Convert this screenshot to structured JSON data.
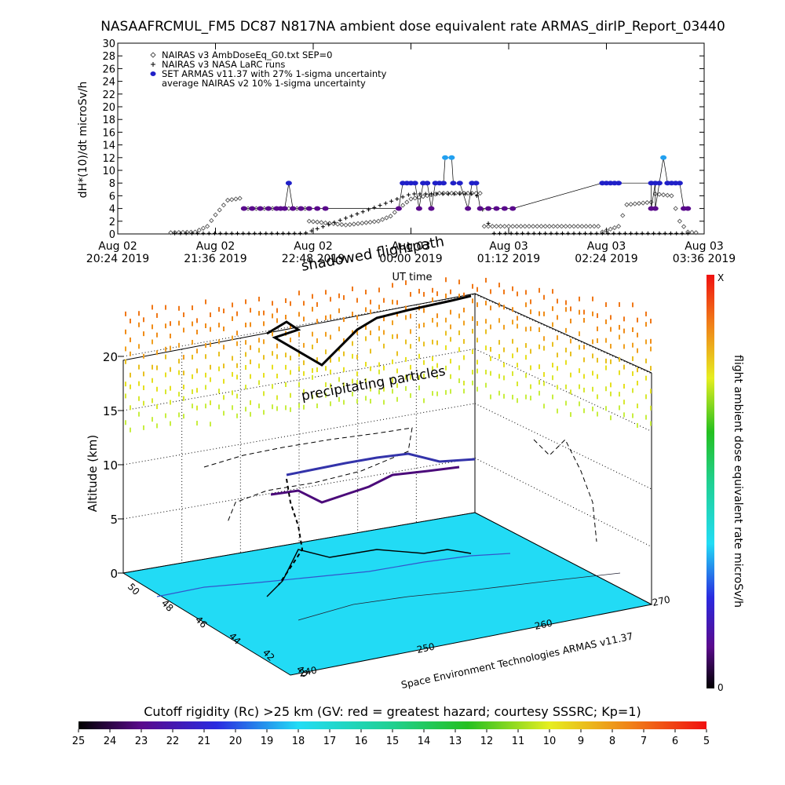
{
  "title": "NASAAFRCMUL_FM5 DC87 N817NA ambient dose equivalent rate ARMAS_dirIP_Report_03440",
  "chart_data": [
    {
      "type": "scatter",
      "ylabel": "dH*(10)/dt microSv/h",
      "xlabel": "UT time",
      "ylim": [
        0,
        30
      ],
      "yticks": [
        0,
        2,
        4,
        6,
        8,
        10,
        12,
        14,
        16,
        18,
        20,
        22,
        24,
        26,
        28,
        30
      ],
      "xlim": [
        0,
        7.2
      ],
      "xticks": [
        {
          "pos": 0.0,
          "line1": "Aug 02",
          "line2": "20:24 2019"
        },
        {
          "pos": 1.2,
          "line1": "Aug 02",
          "line2": "21:36 2019"
        },
        {
          "pos": 2.4,
          "line1": "Aug 02",
          "line2": "22:48 2019"
        },
        {
          "pos": 3.6,
          "line1": "Aug 03",
          "line2": "00:00 2019"
        },
        {
          "pos": 4.8,
          "line1": "Aug 03",
          "line2": "01:12 2019"
        },
        {
          "pos": 6.0,
          "line1": "Aug 03",
          "line2": "02:24 2019"
        },
        {
          "pos": 7.2,
          "line1": "Aug 03",
          "line2": "03:36 2019"
        }
      ],
      "legend": [
        {
          "symbol": "diamond",
          "label": "NAIRAS v3 AmbDoseEq_G0.txt SEP=0"
        },
        {
          "symbol": "plus",
          "label": "NAIRAS v3 NASA LaRC runs"
        },
        {
          "symbol": "dot",
          "label": "SET ARMAS v11.37 with 27% 1-sigma uncertainty"
        },
        {
          "symbol": "none",
          "label": "average NAIRAS v2 10% 1-sigma uncertainty"
        }
      ],
      "legend_placement": "top-left",
      "series": [
        {
          "name": "NAIRAS v3 AmbDoseEq_G0.txt SEP=0",
          "color": "#555555",
          "x_start": 0.65,
          "x_end": 7.1,
          "step": 0.05,
          "profile": [
            [
              0.65,
              0.2
            ],
            [
              0.95,
              0.3
            ],
            [
              1.1,
              1.2
            ],
            [
              1.2,
              3.0
            ],
            [
              1.35,
              5.3
            ],
            [
              1.5,
              5.6
            ],
            [
              1.52,
              4.0
            ],
            [
              2.3,
              4.0
            ],
            [
              2.35,
              2.0
            ],
            [
              2.8,
              1.4
            ],
            [
              3.2,
              2.0
            ],
            [
              3.35,
              2.8
            ],
            [
              3.45,
              4.0
            ],
            [
              3.6,
              5.5
            ],
            [
              3.95,
              6.4
            ],
            [
              4.45,
              6.4
            ],
            [
              4.5,
              1.2
            ],
            [
              5.9,
              1.2
            ],
            [
              5.95,
              0.3
            ],
            [
              6.15,
              1.2
            ],
            [
              6.25,
              4.6
            ],
            [
              6.55,
              5.0
            ],
            [
              6.6,
              6.3
            ],
            [
              6.8,
              6.0
            ],
            [
              6.9,
              2.0
            ],
            [
              7.0,
              0.3
            ],
            [
              7.1,
              0.2
            ]
          ]
        },
        {
          "name": "NAIRAS v3 NASA LaRC runs",
          "color": "#000000",
          "x_start": 0.7,
          "x_end": 7.05,
          "step": 0.07,
          "profile": [
            [
              0.7,
              0.1
            ],
            [
              1.2,
              0.1
            ],
            [
              1.55,
              0.1
            ],
            [
              2.3,
              0.1
            ],
            [
              3.6,
              6.3
            ],
            [
              4.4,
              6.3
            ],
            [
              4.6,
              0.1
            ],
            [
              6.9,
              0.1
            ],
            [
              7.05,
              0.1
            ]
          ]
        },
        {
          "name": "SET ARMAS v11.37 with 27% 1-sigma uncertainty",
          "color": "#2020c8",
          "points": [
            [
              1.55,
              4.0
            ],
            [
              1.65,
              4.0
            ],
            [
              1.75,
              4.0
            ],
            [
              1.85,
              4.0
            ],
            [
              1.95,
              4.0
            ],
            [
              2.05,
              4.0
            ],
            [
              2.15,
              4.0
            ],
            [
              2.25,
              4.0
            ],
            [
              2.35,
              4.0
            ],
            [
              2.45,
              4.0
            ],
            [
              2.55,
              4.0
            ],
            [
              2.1,
              8.0
            ],
            [
              2.0,
              4.0
            ],
            [
              3.45,
              4.0
            ],
            [
              3.5,
              8.0
            ],
            [
              3.55,
              8.0
            ],
            [
              3.6,
              8.0
            ],
            [
              3.65,
              8.0
            ],
            [
              3.7,
              4.0
            ],
            [
              3.75,
              8.0
            ],
            [
              3.8,
              8.0
            ],
            [
              3.85,
              4.0
            ],
            [
              3.9,
              8.0
            ],
            [
              3.95,
              8.0
            ],
            [
              4.0,
              8.0
            ],
            [
              4.02,
              12.0
            ],
            [
              4.1,
              12.0
            ],
            [
              4.12,
              8.0
            ],
            [
              4.2,
              8.0
            ],
            [
              4.3,
              4.0
            ],
            [
              4.35,
              8.0
            ],
            [
              4.4,
              8.0
            ],
            [
              4.45,
              4.0
            ],
            [
              4.55,
              4.0
            ],
            [
              4.65,
              4.0
            ],
            [
              4.75,
              4.0
            ],
            [
              4.85,
              4.0
            ],
            [
              5.95,
              8.0
            ],
            [
              6.0,
              8.0
            ],
            [
              6.05,
              8.0
            ],
            [
              6.1,
              8.0
            ],
            [
              6.15,
              8.0
            ],
            [
              6.55,
              8.0
            ],
            [
              6.6,
              8.0
            ],
            [
              6.65,
              8.0
            ],
            [
              6.7,
              12.0
            ],
            [
              6.75,
              8.0
            ],
            [
              6.8,
              8.0
            ],
            [
              6.85,
              8.0
            ],
            [
              6.9,
              8.0
            ],
            [
              6.95,
              4.0
            ],
            [
              7.0,
              4.0
            ],
            [
              6.6,
              4.0
            ],
            [
              6.55,
              4.0
            ]
          ]
        }
      ]
    },
    {
      "type": "scatter",
      "ylabel": "Altitude (km)",
      "zticks": [
        0,
        5,
        10,
        15,
        20
      ],
      "lat_ticks": [
        40,
        42,
        44,
        46,
        48,
        50
      ],
      "lon_ticks": [
        240,
        250,
        260,
        270
      ],
      "annotations": [
        "shadowed flightpath",
        "precipitating particles"
      ],
      "credit": "Space Environment Technologies ARMAS v11.37",
      "colorbar_title": "flight ambient dose equivalent rate microSv/h",
      "colorbar_top": "X",
      "colorbar_bottom": "0",
      "rigidity_title": "Cutoff rigidity (Rc) >25 km (GV: red = greatest hazard; courtesy SSSRC; Kp=1)",
      "rigidity_ticks": [
        "25",
        "24",
        "23",
        "22",
        "21",
        "20",
        "19",
        "18",
        "17",
        "16",
        "15",
        "14",
        "13",
        "12",
        "11",
        "10",
        "9",
        "8",
        "7",
        "6",
        "5"
      ],
      "colors": {
        "ground": "#22dbf5",
        "flight": "#3333aa",
        "shadow": "#000000"
      }
    }
  ]
}
